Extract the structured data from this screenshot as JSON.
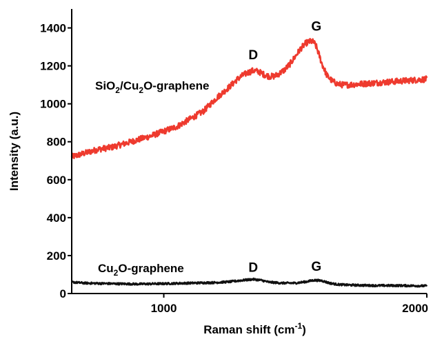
{
  "chart_data": {
    "type": "line",
    "xlabel": {
      "text": "Raman shift (cm",
      "sup": "-1",
      "close": ")"
    },
    "ylabel": "Intensity (a.u.)",
    "xlim": [
      650,
      2000
    ],
    "ylim": [
      0,
      1500
    ],
    "xticks": [
      1000,
      2000
    ],
    "yticks": [
      0,
      200,
      400,
      600,
      800,
      1000,
      1200,
      1400
    ],
    "grid": false,
    "series": [
      {
        "color": "#ee3a2e",
        "label_parts": [
          {
            "t": "SiO",
            "sub": false
          },
          {
            "t": "2",
            "sub": true
          },
          {
            "t": "/Cu",
            "sub": false
          },
          {
            "t": "2",
            "sub": true
          },
          {
            "t": "O-graphene",
            "sub": false
          }
        ],
        "x": [
          650,
          700,
          750,
          800,
          850,
          900,
          950,
          1000,
          1050,
          1100,
          1150,
          1200,
          1250,
          1280,
          1300,
          1320,
          1340,
          1360,
          1380,
          1400,
          1420,
          1440,
          1460,
          1480,
          1500,
          1520,
          1540,
          1560,
          1570,
          1580,
          1590,
          1600,
          1620,
          1640,
          1660,
          1680,
          1700,
          1750,
          1800,
          1850,
          1900,
          1950,
          2000
        ],
        "values": [
          720,
          740,
          760,
          770,
          790,
          810,
          830,
          855,
          880,
          920,
          960,
          1030,
          1090,
          1130,
          1150,
          1165,
          1175,
          1170,
          1155,
          1145,
          1145,
          1160,
          1180,
          1210,
          1250,
          1290,
          1320,
          1330,
          1325,
          1300,
          1260,
          1215,
          1150,
          1120,
          1105,
          1100,
          1100,
          1105,
          1110,
          1115,
          1120,
          1125,
          1130
        ],
        "noise": 16
      },
      {
        "color": "#111111",
        "label_parts": [
          {
            "t": "Cu",
            "sub": false
          },
          {
            "t": "2",
            "sub": true
          },
          {
            "t": "O-graphene",
            "sub": false
          }
        ],
        "x": [
          650,
          700,
          800,
          900,
          1000,
          1100,
          1200,
          1250,
          1300,
          1340,
          1370,
          1400,
          1450,
          1500,
          1540,
          1570,
          1600,
          1630,
          1660,
          1700,
          1800,
          1900,
          2000
        ],
        "values": [
          60,
          55,
          52,
          50,
          52,
          55,
          58,
          62,
          70,
          75,
          70,
          60,
          55,
          55,
          62,
          70,
          68,
          55,
          48,
          45,
          42,
          42,
          40
        ],
        "noise": 5
      }
    ],
    "peak_labels": [
      {
        "text": "D",
        "x": 1340,
        "y": 1235
      },
      {
        "text": "G",
        "x": 1580,
        "y": 1385
      },
      {
        "text": "D",
        "x": 1340,
        "y": 115
      },
      {
        "text": "G",
        "x": 1580,
        "y": 120
      }
    ]
  }
}
